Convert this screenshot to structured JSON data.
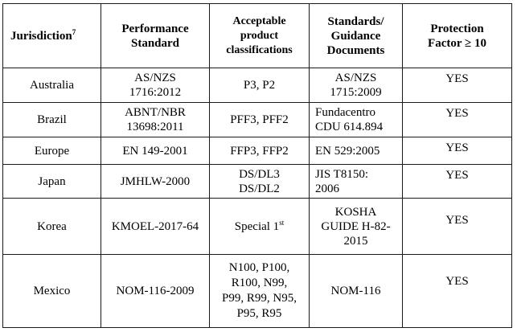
{
  "headers": {
    "jurisdiction": "Jurisdiction",
    "jurisdiction_sup": "7",
    "performance": [
      "Performance",
      "Standard"
    ],
    "acceptable": [
      "Acceptable",
      "product",
      "classifications"
    ],
    "standards": [
      "Standards/",
      "Guidance",
      "Documents"
    ],
    "protection": [
      "Protection",
      "Factor ≥ 10"
    ]
  },
  "rows": [
    {
      "jurisdiction": "Australia",
      "performance": [
        "AS/NZS",
        "1716:2012"
      ],
      "acceptable": [
        "P3, P2"
      ],
      "standards": [
        "AS/NZS",
        "1715:2009"
      ],
      "factor": "YES"
    },
    {
      "jurisdiction": "Brazil",
      "performance": [
        "ABNT/NBR",
        "13698:2011"
      ],
      "acceptable": [
        "PFF3, PFF2"
      ],
      "standards": [
        "Fundacentro",
        "CDU 614.894"
      ],
      "factor": "YES"
    },
    {
      "jurisdiction": "Europe",
      "performance": [
        "EN 149-2001"
      ],
      "acceptable": [
        "FFP3, FFP2"
      ],
      "standards": [
        "EN 529:2005"
      ],
      "factor": "YES"
    },
    {
      "jurisdiction": "Japan",
      "performance": [
        "JMHLW-2000"
      ],
      "acceptable": [
        "DS/DL3",
        "DS/DL2"
      ],
      "standards": [
        "JIS T8150:",
        "2006"
      ],
      "factor": "YES"
    },
    {
      "jurisdiction": "Korea",
      "performance": [
        "KMOEL-2017-64"
      ],
      "acceptable": [
        "Special 1"
      ],
      "acceptable_sup": "st",
      "standards": [
        "KOSHA",
        "GUIDE H-82-",
        "2015"
      ],
      "factor": "YES"
    },
    {
      "jurisdiction": "Mexico",
      "performance": [
        "NOM-116-2009"
      ],
      "acceptable": [
        "N100, P100,",
        "R100, N99,",
        "P99, R99, N95,",
        "P95, R95"
      ],
      "standards": [
        "NOM-116"
      ],
      "factor": "YES"
    }
  ]
}
